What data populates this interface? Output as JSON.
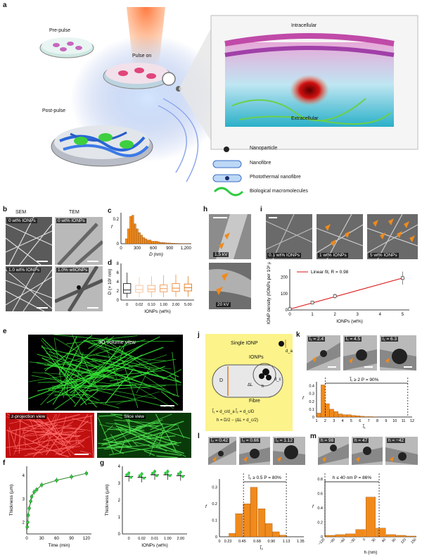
{
  "labels": {
    "a": "a",
    "b": "b",
    "c": "c",
    "d": "d",
    "e": "e",
    "f": "f",
    "g": "g",
    "h": "h",
    "i": "i",
    "j": "j",
    "k": "k",
    "l": "l",
    "m": "m"
  },
  "panel_a": {
    "pre_pulse": "Pre-pulse",
    "pulse_on": "Pulse on",
    "post_pulse": "Post-pulse",
    "intracellular": "Intracellular",
    "extracellular": "Extracellular",
    "legend": [
      "Nanoparticle",
      "Nanofibre",
      "Photothermal nanofibre",
      "Biological macromolecules"
    ]
  },
  "panel_b": {
    "col1": "SEM",
    "col2": "TEM",
    "tags": [
      "0 wt% IONPs",
      "0 wt% IONPs",
      "1.0 wt% IONPs",
      "1.0% wtIONPs"
    ]
  },
  "panel_c": {
    "xlabel": "D (nm)",
    "ylabel": "f",
    "yticks": [
      "0",
      "0.2"
    ],
    "xticks": [
      "0",
      "300",
      "600",
      "900",
      "1,200"
    ]
  },
  "panel_d": {
    "ylabel": "D (× 10² nm)",
    "xlabel": "IONPs (wt%)",
    "yticks": [
      "0",
      "2",
      "4",
      "6",
      "8"
    ],
    "xticks": [
      "0",
      "0.02",
      "0.10",
      "1.00",
      "2.00",
      "5.00"
    ]
  },
  "panel_e": {
    "volume": "3D volume view",
    "zproj": "z-projection view",
    "slice": "Slice view",
    "axes": {
      "x": "x",
      "y": "y",
      "z": "z"
    }
  },
  "panel_h": {
    "kv1": "1.5 kV",
    "kv2": "20 kV"
  },
  "panel_i": {
    "tags": [
      "0.1 wt% IONPs",
      "1 wt% IONPs",
      "5 wt% IONPs"
    ],
    "legend": "Linear fit, R = 0.98",
    "ylabel": "IONP density (IONPs per 10³ µm²)",
    "xlabel": "IONPs (wt%)",
    "yticks": [
      "0",
      "100",
      "200"
    ],
    "xticks": [
      "0",
      "1",
      "2",
      "3",
      "4",
      "5"
    ]
  },
  "panel_j": {
    "single": "Single IONP",
    "ionps": "IONPs",
    "fibre": "Fibre",
    "D": "D",
    "dL": "ΔL",
    "dc": "d_c",
    "h": "h",
    "da": "d_a",
    "eq1": "l̃₁ = d_c/d_a   l̃₂ = d_c/D",
    "eq2": "h = D/2 − (ΔL + d_c/2)"
  },
  "panel_k": {
    "tags": [
      "l̃₁ = 2.4",
      "l̃₁ = 4.5",
      "l̃₁ = 6.3"
    ],
    "annot": "l̃₁ ≥ 2   P = 90%",
    "ylabel": "f",
    "xlabel": "l̃₁",
    "yticks": [
      "0",
      "0.1",
      "0.2",
      "0.3",
      "0.4"
    ],
    "xticks": [
      "1",
      "2",
      "3",
      "4",
      "5",
      "6",
      "7",
      "8",
      "9",
      "10",
      "11",
      "12"
    ]
  },
  "panel_l": {
    "tags": [
      "l̃₂ = 0.42",
      "l̃₂ = 0.66",
      "l̃₂ = 1.12"
    ],
    "annot": "l̃₂ ≥ 0.5   P = 80%",
    "ylabel": "f",
    "xlabel": "l̃₂",
    "yticks": [
      "0",
      "0.1",
      "0.2",
      "0.3"
    ],
    "xticks": [
      "0",
      "0.23",
      "0.45",
      "0.68",
      "0.90",
      "1.13",
      "1.35"
    ]
  },
  "panel_m": {
    "tags": [
      "h = 98",
      "h = 47",
      "h = −42"
    ],
    "annot": "h ≤ 40 nm   P = 86%",
    "ylabel": "f",
    "xlabel": "h (nm)",
    "yticks": [
      "0",
      "0.2",
      "0.4",
      "0.6",
      "0.8"
    ],
    "xticks": [
      "−120",
      "−90",
      "−60",
      "−30",
      "0",
      "30",
      "60",
      "90",
      "120",
      "150"
    ]
  },
  "panel_f": {
    "ylabel": "Thickness (µm)",
    "xlabel": "Time (min)",
    "yticks": [
      "2",
      "3",
      "4"
    ],
    "xticks": [
      "0",
      "30",
      "60",
      "90",
      "120"
    ]
  },
  "panel_g": {
    "ylabel": "Thickness (µm)",
    "xlabel": "IONPs (wt%)",
    "yticks": [
      "0",
      "1",
      "2",
      "3",
      "4"
    ],
    "xticks": [
      "0",
      "0.02",
      "0.01",
      "1.00",
      "2.00"
    ]
  },
  "chart_data": [
    {
      "id": "c",
      "type": "bar",
      "title": "",
      "xlabel": "D (nm)",
      "ylabel": "f",
      "xlim": [
        0,
        1300
      ],
      "ylim": [
        0,
        0.25
      ],
      "x": [
        100,
        140,
        180,
        220,
        260,
        300,
        340,
        380,
        420,
        460,
        500,
        540,
        580,
        620,
        660,
        700,
        740,
        780,
        820,
        860,
        900,
        940,
        980,
        1020,
        1060,
        1100,
        1140,
        1180,
        1220,
        1260
      ],
      "values": [
        0.04,
        0.12,
        0.22,
        0.23,
        0.16,
        0.12,
        0.09,
        0.07,
        0.05,
        0.04,
        0.03,
        0.03,
        0.02,
        0.02,
        0.02,
        0.015,
        0.01,
        0.01,
        0.008,
        0.006,
        0.006,
        0.005,
        0.004,
        0.003,
        0.003,
        0.002,
        0.002,
        0.002,
        0.001,
        0.001
      ]
    },
    {
      "id": "d",
      "type": "box",
      "xlabel": "IONPs (wt%)",
      "ylabel": "D (× 10² nm)",
      "ylim": [
        0,
        8
      ],
      "categories": [
        "0",
        "0.02",
        "0.10",
        "1.00",
        "2.00",
        "5.00"
      ],
      "boxes": [
        {
          "min": 0.5,
          "q1": 1.5,
          "median": 2.2,
          "q3": 3.6,
          "max": 6.0
        },
        {
          "min": 0.6,
          "q1": 1.7,
          "median": 2.3,
          "q3": 3.2,
          "max": 5.0
        },
        {
          "min": 0.6,
          "q1": 1.8,
          "median": 2.4,
          "q3": 3.2,
          "max": 5.2
        },
        {
          "min": 0.6,
          "q1": 1.8,
          "median": 2.5,
          "q3": 3.3,
          "max": 5.4
        },
        {
          "min": 0.7,
          "q1": 1.9,
          "median": 2.6,
          "q3": 3.6,
          "max": 5.6
        },
        {
          "min": 0.7,
          "q1": 2.0,
          "median": 2.7,
          "q3": 3.5,
          "max": 5.2
        }
      ]
    },
    {
      "id": "i",
      "type": "scatter",
      "xlabel": "IONPs (wt%)",
      "ylabel": "IONP density (IONPs per 10³ µm²)",
      "xlim": [
        0,
        5.3
      ],
      "ylim": [
        0,
        250
      ],
      "x": [
        0,
        1,
        2,
        5
      ],
      "values": [
        5,
        45,
        85,
        195
      ],
      "errors": [
        5,
        10,
        15,
        40
      ],
      "fit": {
        "x": [
          0,
          5
        ],
        "y": [
          5,
          195
        ]
      }
    },
    {
      "id": "k",
      "type": "bar",
      "xlabel": "l̃₁",
      "ylabel": "f",
      "xlim": [
        1,
        12
      ],
      "ylim": [
        0,
        0.45
      ],
      "x": [
        1.25,
        1.75,
        2.25,
        2.75,
        3.25,
        3.75,
        4.25,
        4.75,
        5.25,
        5.75,
        6.25,
        6.75,
        7.25,
        7.75
      ],
      "values": [
        0.05,
        0.41,
        0.17,
        0.1,
        0.07,
        0.04,
        0.03,
        0.03,
        0.02,
        0.015,
        0.01,
        0.005,
        0.005,
        0.003
      ]
    },
    {
      "id": "l",
      "type": "bar",
      "xlabel": "l̃₂",
      "ylabel": "f",
      "xlim": [
        0.1,
        1.4
      ],
      "ylim": [
        0,
        0.35
      ],
      "x": [
        0.3,
        0.4,
        0.52,
        0.63,
        0.75,
        0.86,
        0.97,
        1.08
      ],
      "values": [
        0.02,
        0.14,
        0.2,
        0.3,
        0.17,
        0.08,
        0.03,
        0.01
      ]
    },
    {
      "id": "m",
      "type": "bar",
      "xlabel": "h (nm)",
      "ylabel": "f",
      "xlim": [
        -120,
        150
      ],
      "ylim": [
        0,
        0.8
      ],
      "x": [
        -105,
        -75,
        -45,
        -15,
        15,
        45,
        75,
        105,
        135
      ],
      "values": [
        0.02,
        0.03,
        0.04,
        0.1,
        0.55,
        0.12,
        0.03,
        0.02,
        0.01
      ]
    },
    {
      "id": "f",
      "type": "scatter",
      "xlabel": "Time (min)",
      "ylabel": "Thickness (µm)",
      "xlim": [
        0,
        130
      ],
      "ylim": [
        1.5,
        4.4
      ],
      "x": [
        1,
        2,
        3,
        5,
        8,
        10,
        15,
        20,
        30,
        60,
        90,
        120
      ],
      "values": [
        1.8,
        2.0,
        2.3,
        2.6,
        2.9,
        3.1,
        3.3,
        3.4,
        3.6,
        3.8,
        3.95,
        4.1
      ]
    },
    {
      "id": "g",
      "type": "scatter",
      "xlabel": "IONPs (wt%)",
      "ylabel": "Thickness (µm)",
      "ylim": [
        0,
        4
      ],
      "categories": [
        "0",
        "0.02",
        "0.01",
        "1.00",
        "2.00"
      ],
      "values": [
        3.4,
        3.35,
        3.5,
        3.5,
        3.45
      ]
    }
  ]
}
